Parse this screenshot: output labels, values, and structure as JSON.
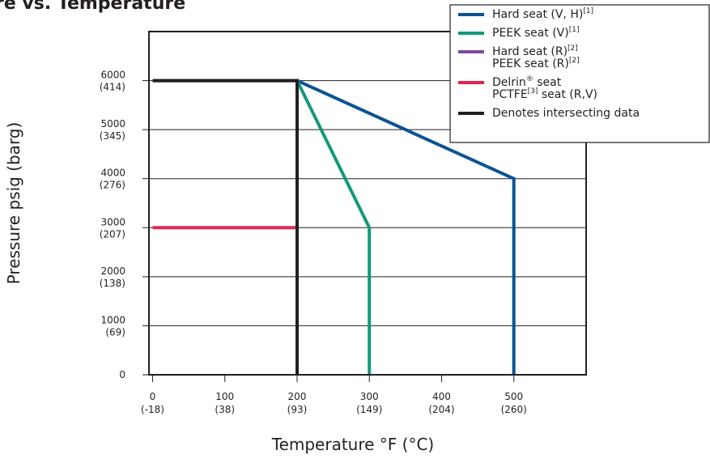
{
  "chart_data": {
    "type": "line",
    "title": "re vs. Temperature",
    "xlabel": "Temperature °F (°C)",
    "ylabel": "Pressure psig (barg)",
    "xlim": [
      -5,
      600
    ],
    "ylim": [
      0,
      7000
    ],
    "grid": true,
    "legend_position": "top-right",
    "x_ticks": [
      {
        "value": 0,
        "label": "0",
        "sublabel": "(-18)"
      },
      {
        "value": 100,
        "label": "100",
        "sublabel": "(38)"
      },
      {
        "value": 200,
        "label": "200",
        "sublabel": "(93)"
      },
      {
        "value": 300,
        "label": "300",
        "sublabel": "(149)"
      },
      {
        "value": 400,
        "label": "400",
        "sublabel": "(204)"
      },
      {
        "value": 500,
        "label": "500",
        "sublabel": "(260)"
      }
    ],
    "y_ticks": [
      {
        "value": 0,
        "label": "0",
        "sublabel": ""
      },
      {
        "value": 1000,
        "label": "1000",
        "sublabel": "(69)"
      },
      {
        "value": 2000,
        "label": "2000",
        "sublabel": "(138)"
      },
      {
        "value": 3000,
        "label": "3000",
        "sublabel": "(207)"
      },
      {
        "value": 4000,
        "label": "4000",
        "sublabel": "(276)"
      },
      {
        "value": 5000,
        "label": "5000",
        "sublabel": "(345)"
      },
      {
        "value": 6000,
        "label": "6000",
        "sublabel": "(414)"
      }
    ],
    "series": [
      {
        "key": "hard_vh",
        "color": "#0b5394",
        "points": [
          [
            200,
            6000
          ],
          [
            500,
            4000
          ],
          [
            500,
            0
          ]
        ]
      },
      {
        "key": "peek_v",
        "color": "#13997a",
        "points": [
          [
            200,
            6000
          ],
          [
            300,
            3000
          ],
          [
            300,
            0
          ]
        ]
      },
      {
        "key": "hard_peek_r",
        "color": "#7a4b9c",
        "points": [
          [
            0,
            6000
          ],
          [
            200,
            6000
          ],
          [
            200,
            3000
          ]
        ]
      },
      {
        "key": "delrin_pctfe",
        "color": "#e4254f",
        "points": [
          [
            0,
            3000
          ],
          [
            200,
            3000
          ]
        ]
      },
      {
        "key": "intersecting",
        "color": "#231f20",
        "points": [
          [
            0,
            6000
          ],
          [
            200,
            6000
          ],
          [
            200,
            0
          ]
        ]
      }
    ],
    "legend": [
      {
        "color": "#0b5394",
        "lines": [
          {
            "text": "Hard seat (V, H)",
            "sup": "[1]"
          }
        ]
      },
      {
        "color": "#13997a",
        "lines": [
          {
            "text": "PEEK seat (V)",
            "sup": "[1]"
          }
        ]
      },
      {
        "color": "#7a4b9c",
        "lines": [
          {
            "text": "Hard seat (R)",
            "sup": "[2]"
          },
          {
            "text": "PEEK seat (R)",
            "sup": "[2]"
          }
        ]
      },
      {
        "color": "#e4254f",
        "lines": [
          {
            "text": "Delrin",
            "sup": "®",
            "after": " seat"
          },
          {
            "text": "PCTFE",
            "sup": "[3]",
            "after": " seat (R,V)"
          }
        ]
      },
      {
        "color": "#231f20",
        "lines": [
          {
            "text": "Denotes intersecting data"
          }
        ]
      }
    ]
  }
}
